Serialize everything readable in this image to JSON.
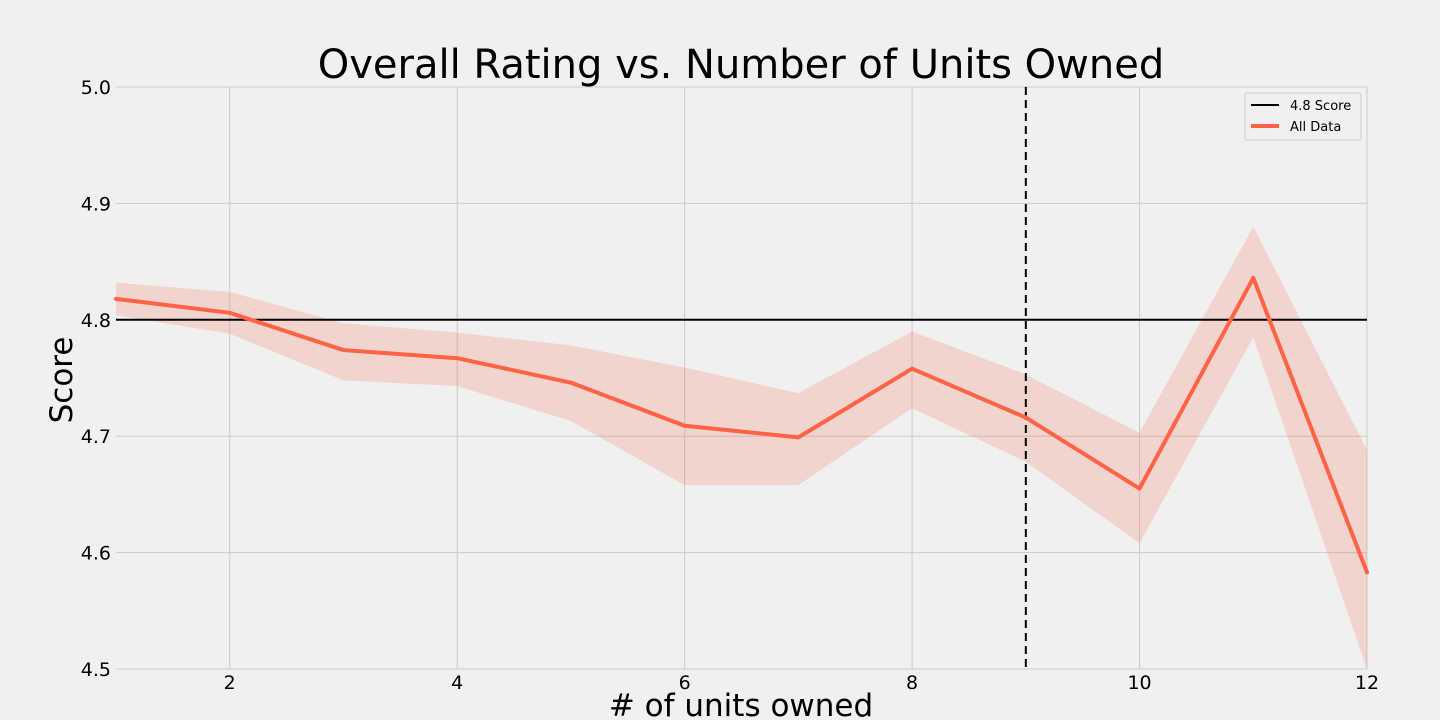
{
  "chart_data": {
    "type": "line",
    "title": "Overall Rating vs. Number of Units Owned",
    "xlabel": "# of units owned",
    "ylabel": "Score",
    "xlim": [
      1,
      12
    ],
    "ylim": [
      4.5,
      5.0
    ],
    "xticks": [
      2,
      4,
      6,
      8,
      10,
      12
    ],
    "yticks": [
      4.5,
      4.6,
      4.7,
      4.8,
      4.9,
      5.0
    ],
    "grid": true,
    "legend_position": "top-right",
    "x": [
      1,
      2,
      3,
      4,
      5,
      6,
      7,
      8,
      9,
      10,
      11,
      12
    ],
    "series": [
      {
        "name": "All Data",
        "color": "#fc6246",
        "values": [
          4.818,
          4.806,
          4.774,
          4.767,
          4.746,
          4.709,
          4.699,
          4.758,
          4.716,
          4.655,
          4.836,
          4.583
        ],
        "ci_lower": [
          4.804,
          4.788,
          4.748,
          4.743,
          4.713,
          4.658,
          4.658,
          4.724,
          4.678,
          4.608,
          4.785,
          4.5
        ],
        "ci_upper": [
          4.832,
          4.824,
          4.797,
          4.789,
          4.778,
          4.759,
          4.737,
          4.79,
          4.753,
          4.703,
          4.88,
          4.688
        ]
      }
    ],
    "reference_lines": [
      {
        "orientation": "horizontal",
        "value": 4.8,
        "name": "4.8 Score",
        "style": "solid",
        "color": "#000000"
      },
      {
        "orientation": "vertical",
        "value": 9,
        "style": "dashed",
        "color": "#000000"
      }
    ]
  }
}
